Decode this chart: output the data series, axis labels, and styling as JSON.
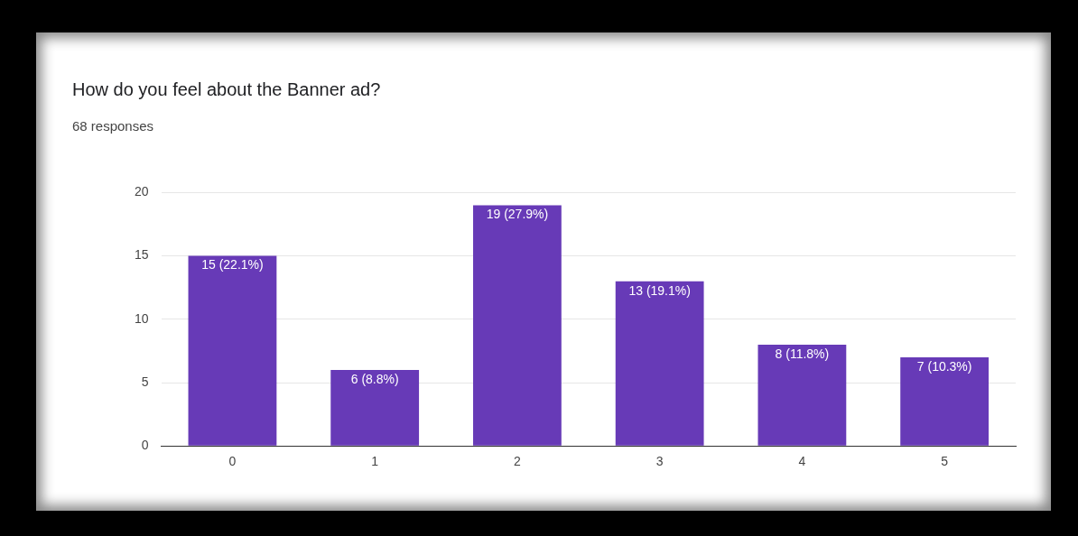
{
  "chart_data": {
    "type": "bar",
    "title": "How do you feel about the Banner ad?",
    "subtitle": "68 responses",
    "categories": [
      "0",
      "1",
      "2",
      "3",
      "4",
      "5"
    ],
    "values": [
      15,
      6,
      19,
      13,
      8,
      7
    ],
    "value_labels": [
      "15 (22.1%)",
      "6 (8.8%)",
      "19 (27.9%)",
      "13 (19.1%)",
      "8 (11.8%)",
      "7 (10.3%)"
    ],
    "color": "#673ab7",
    "ylim": [
      0,
      20
    ],
    "yticks": [
      0,
      5,
      10,
      15,
      20
    ],
    "grid": "y"
  }
}
